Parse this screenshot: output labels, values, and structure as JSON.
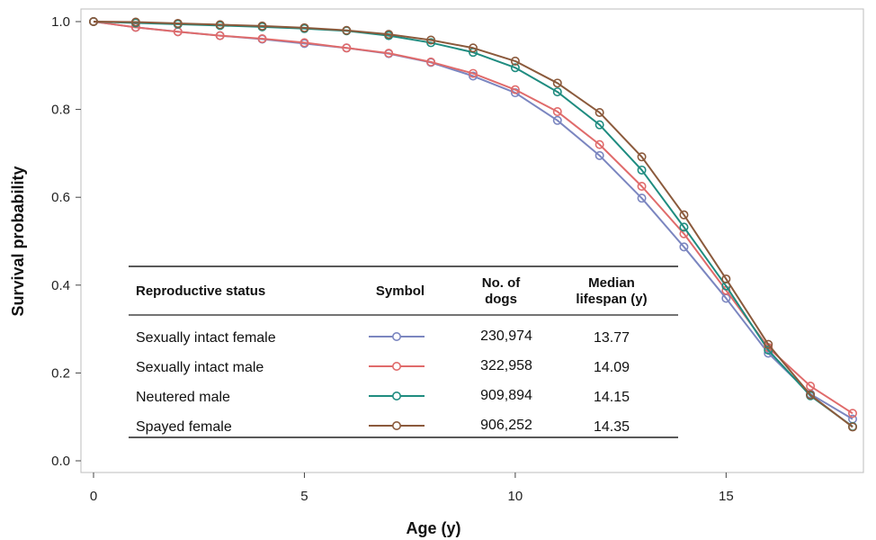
{
  "chart_data": {
    "type": "line",
    "xlabel": "Age (y)",
    "ylabel": "Survival probability",
    "xlim": [
      0,
      18
    ],
    "ylim": [
      0,
      1.0
    ],
    "x_ticks": [
      "0",
      "5",
      "10",
      "15"
    ],
    "y_ticks": [
      "0.0",
      "0.2",
      "0.4",
      "0.6",
      "0.8",
      "1.0"
    ],
    "x": [
      0,
      1,
      2,
      3,
      4,
      5,
      6,
      7,
      8,
      9,
      10,
      11,
      12,
      13,
      14,
      15,
      16,
      17,
      18
    ],
    "series": [
      {
        "name": "Sexually intact female",
        "color": "#7b86c0",
        "count": "230,974",
        "median": "13.77",
        "values": [
          1.0,
          0.987,
          0.977,
          0.968,
          0.96,
          0.95,
          0.94,
          0.927,
          0.907,
          0.876,
          0.838,
          0.775,
          0.695,
          0.598,
          0.487,
          0.37,
          0.245,
          0.152,
          0.095
        ]
      },
      {
        "name": "Sexually intact male",
        "color": "#e06b6b",
        "count": "322,958",
        "median": "14.09",
        "values": [
          1.0,
          0.987,
          0.977,
          0.968,
          0.961,
          0.952,
          0.94,
          0.928,
          0.908,
          0.882,
          0.845,
          0.795,
          0.72,
          0.625,
          0.517,
          0.388,
          0.258,
          0.17,
          0.108
        ]
      },
      {
        "name": "Neutered male",
        "color": "#1f8c80",
        "count": "909,894",
        "median": "14.15",
        "values": [
          1.0,
          0.997,
          0.994,
          0.991,
          0.988,
          0.984,
          0.979,
          0.968,
          0.952,
          0.93,
          0.895,
          0.84,
          0.765,
          0.662,
          0.532,
          0.398,
          0.252,
          0.148,
          0.078
        ]
      },
      {
        "name": "Spayed female",
        "color": "#8b5a3c",
        "count": "906,252",
        "median": "14.35",
        "values": [
          1.0,
          0.999,
          0.996,
          0.993,
          0.99,
          0.986,
          0.98,
          0.971,
          0.958,
          0.94,
          0.91,
          0.86,
          0.793,
          0.692,
          0.56,
          0.414,
          0.265,
          0.15,
          0.077
        ]
      }
    ],
    "legend_table": {
      "headers": {
        "status": "Reproductive status",
        "symbol": "Symbol",
        "count_line1": "No. of",
        "count_line2": "dogs",
        "median_line1": "Median",
        "median_line2": "lifespan (y)"
      }
    }
  }
}
